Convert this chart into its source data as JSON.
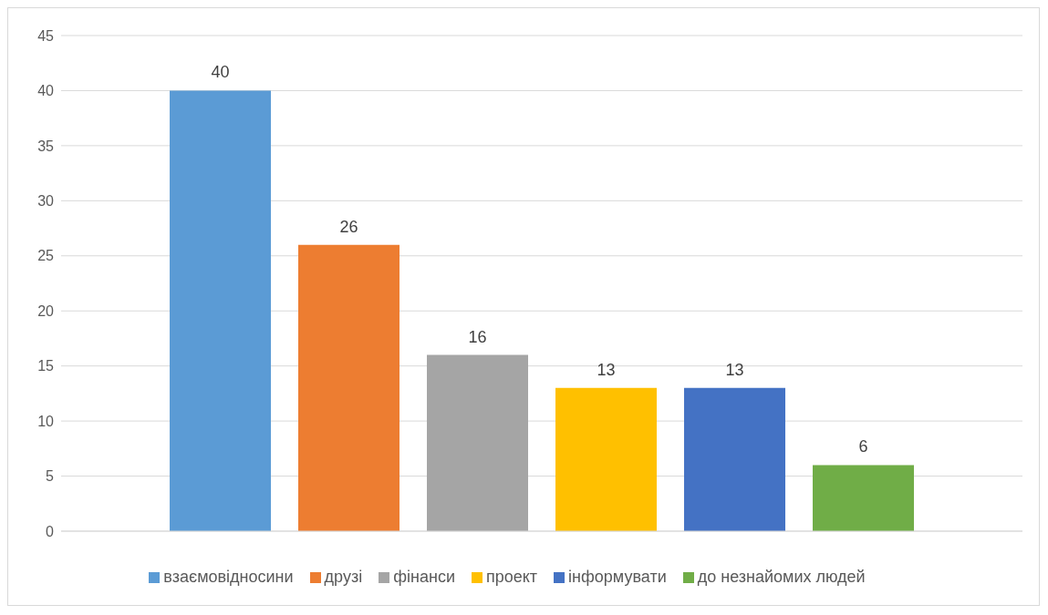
{
  "chart_data": {
    "type": "bar",
    "categories": [
      null
    ],
    "series": [
      {
        "name": "взаємовідносини",
        "color": "#5b9bd5",
        "values": [
          40
        ]
      },
      {
        "name": "друзі",
        "color": "#ed7d31",
        "values": [
          26
        ]
      },
      {
        "name": "фінанси",
        "color": "#a5a5a5",
        "values": [
          16
        ]
      },
      {
        "name": "проект",
        "color": "#ffc000",
        "values": [
          13
        ]
      },
      {
        "name": "інформувати",
        "color": "#4472c4",
        "values": [
          13
        ]
      },
      {
        "name": "до незнайомих людей",
        "color": "#70ad47",
        "values": [
          6
        ]
      }
    ],
    "ylim": [
      0,
      45
    ],
    "yticks": [
      0,
      5,
      10,
      15,
      20,
      25,
      30,
      35,
      40,
      45
    ],
    "grid": "y",
    "legend": "bottom",
    "data_labels": true
  }
}
